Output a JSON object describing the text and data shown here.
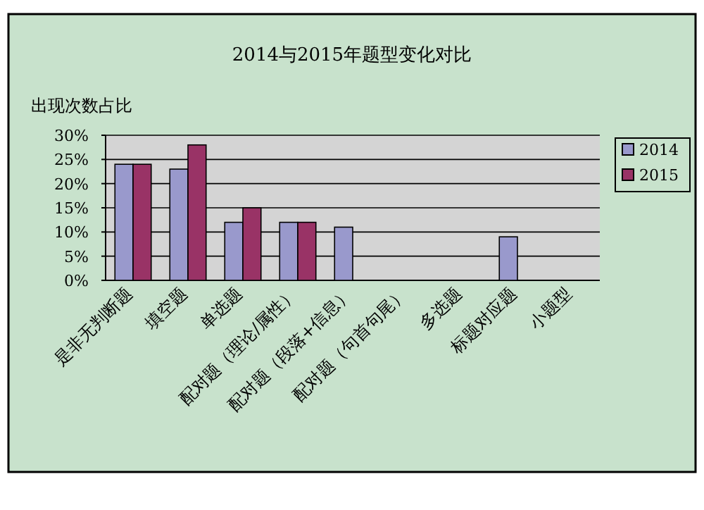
{
  "chart_data": {
    "type": "bar",
    "title": "2014与2015年题型变化对比",
    "ylabel": "出现次数占比",
    "categories": [
      "是非无判断题",
      "填空题",
      "单选题",
      "配对题（理论/属性）",
      "配对题（段落+信息）",
      "配对题（句首句尾）",
      "多选题",
      "标题对应题",
      "小题型"
    ],
    "series": [
      {
        "name": "2014",
        "color": "#9999cc",
        "values": [
          24,
          23,
          12,
          12,
          11,
          null,
          null,
          9,
          null
        ]
      },
      {
        "name": "2015",
        "color": "#993366",
        "values": [
          24,
          28,
          15,
          12,
          null,
          null,
          null,
          null,
          null
        ]
      }
    ],
    "ylim": [
      0,
      30
    ],
    "yticks": [
      {
        "value": 0,
        "label": "0%"
      },
      {
        "value": 5,
        "label": "5%"
      },
      {
        "value": 10,
        "label": "10%"
      },
      {
        "value": 15,
        "label": "15%"
      },
      {
        "value": 20,
        "label": "20%"
      },
      {
        "value": 25,
        "label": "25%"
      },
      {
        "value": 30,
        "label": "30%"
      }
    ],
    "grid": "y",
    "legend": "right"
  }
}
